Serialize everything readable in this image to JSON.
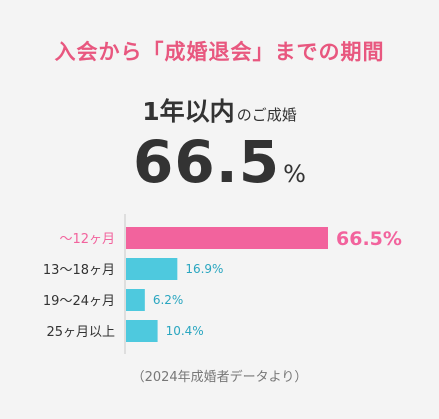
{
  "title": "入会から「成婚退会」までの期間",
  "headline": {
    "label_main": "1年以内",
    "label_suffix": "のご成婚",
    "value": "66.5",
    "unit": "%"
  },
  "chart_data": {
    "type": "bar",
    "orientation": "horizontal",
    "categories": [
      "～12ヶ月",
      "13～18ヶ月",
      "19～24ヶ月",
      "25ヶ月以上"
    ],
    "values": [
      66.5,
      16.9,
      6.2,
      10.4
    ],
    "value_labels": [
      "66.5%",
      "16.9%",
      "6.2%",
      "10.4%"
    ],
    "highlight_index": 0,
    "colors": {
      "highlight": "#f2639d",
      "bar": "#4ec9de",
      "highlight_text": "#f2639d",
      "value_text": "#2aa6c0",
      "axis": "#c8c8c8"
    },
    "xlim": [
      0,
      66.5
    ],
    "grid": false
  },
  "footer": "（2024年成婚者データより）"
}
